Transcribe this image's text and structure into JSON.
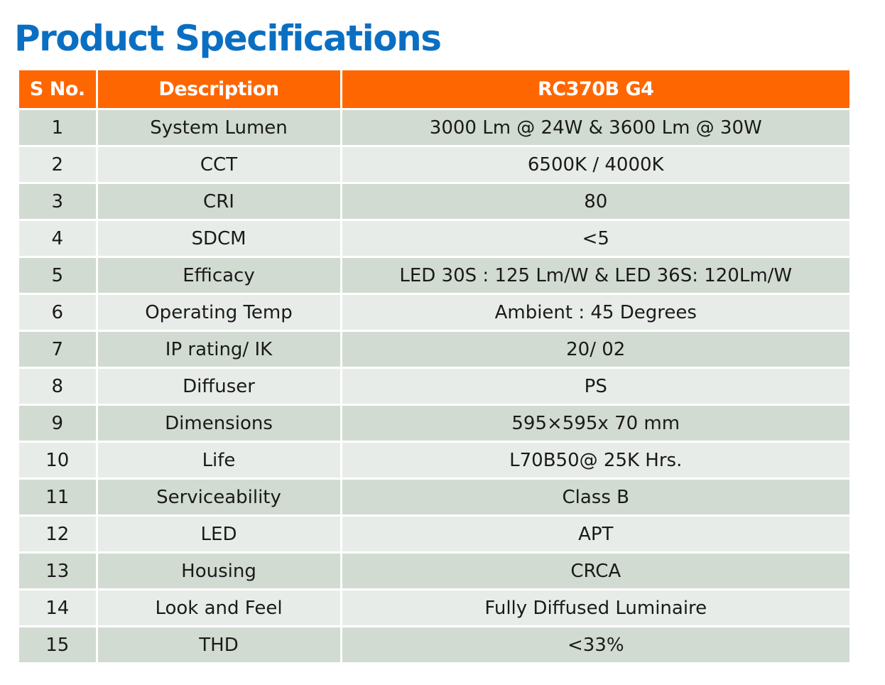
{
  "title": "Product Specifications",
  "table": {
    "headers": [
      "S No.",
      "Description",
      "RC370B  G4"
    ],
    "rows": [
      {
        "sno": "1",
        "description": "System Lumen",
        "value": "3000 Lm @ 24W & 3600 Lm @ 30W"
      },
      {
        "sno": "2",
        "description": "CCT",
        "value": "6500K / 4000K"
      },
      {
        "sno": "3",
        "description": "CRI",
        "value": "80"
      },
      {
        "sno": "4",
        "description": "SDCM",
        "value": "<5"
      },
      {
        "sno": "5",
        "description": "Efficacy",
        "value": "LED 30S : 125 Lm/W & LED 36S: 120Lm/W"
      },
      {
        "sno": "6",
        "description": "Operating Temp",
        "value": "Ambient : 45 Degrees"
      },
      {
        "sno": "7",
        "description": "IP rating/ IK",
        "value": "20/ 02"
      },
      {
        "sno": "8",
        "description": "Diffuser",
        "value": "PS"
      },
      {
        "sno": "9",
        "description": "Dimensions",
        "value": "595×595x 70 mm"
      },
      {
        "sno": "10",
        "description": "Life",
        "value": "L70B50@ 25K Hrs."
      },
      {
        "sno": "11",
        "description": "Serviceability",
        "value": "Class B"
      },
      {
        "sno": "12",
        "description": "LED",
        "value": "APT"
      },
      {
        "sno": "13",
        "description": "Housing",
        "value": "CRCA"
      },
      {
        "sno": "14",
        "description": "Look and Feel",
        "value": "Fully Diffused Luminaire"
      },
      {
        "sno": "15",
        "description": "THD",
        "value": "<33%"
      }
    ]
  },
  "colors": {
    "title": "#0a6fc2",
    "header_bg": "#fe6602",
    "row_odd_bg": "#d1dbd1",
    "row_even_bg": "#e8ece8"
  }
}
